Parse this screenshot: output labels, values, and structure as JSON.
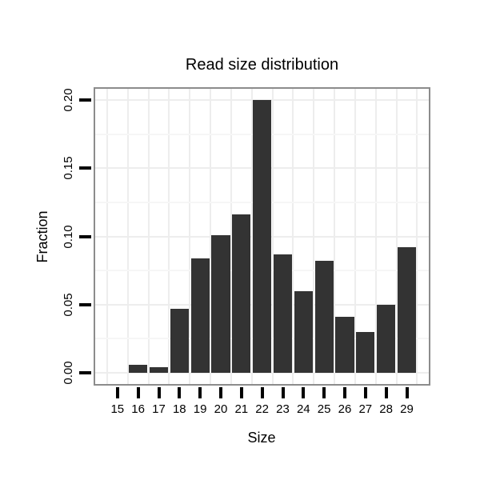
{
  "chart_data": {
    "type": "bar",
    "title": "Read size distribution",
    "xlabel": "Size",
    "ylabel": "Fraction",
    "categories": [
      "15",
      "16",
      "17",
      "18",
      "19",
      "20",
      "21",
      "22",
      "23",
      "24",
      "25",
      "26",
      "27",
      "28",
      "29"
    ],
    "values": [
      0,
      0.006,
      0.004,
      0.047,
      0.084,
      0.101,
      0.116,
      0.2,
      0.087,
      0.06,
      0.082,
      0.041,
      0.03,
      0.05,
      0.092
    ],
    "ytick_labels": [
      "0.00",
      "0.05",
      "0.10",
      "0.15",
      "0.20"
    ],
    "yticks": [
      0,
      0.05,
      0.1,
      0.15,
      0.2
    ],
    "yminor": [
      0.025,
      0.075,
      0.125,
      0.175
    ],
    "ylim": [
      -0.009,
      0.209
    ],
    "grid": "major+minor",
    "legend": "none"
  },
  "colors": {
    "bar": "#333333",
    "panel_border": "#8c8c8c",
    "grid_major": "#ededed",
    "grid_minor": "#f6f6f6",
    "tick": "#000000",
    "text": "#000000",
    "background": "#ffffff"
  }
}
